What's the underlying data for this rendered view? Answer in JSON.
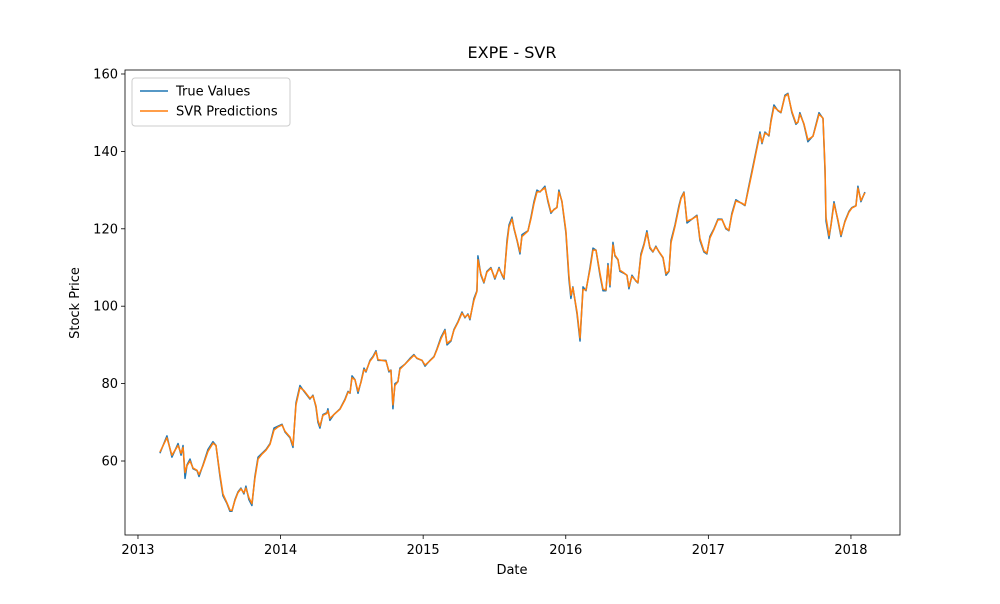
{
  "chart_data": {
    "type": "line",
    "title": "EXPE - SVR",
    "xlabel": "Date",
    "ylabel": "Stock Price",
    "xlim": [
      2012.909,
      2018.344
    ],
    "ylim": [
      40.88,
      161.03
    ],
    "xticks": [
      2013,
      2014,
      2015,
      2016,
      2017,
      2018
    ],
    "yticks": [
      60,
      80,
      100,
      120,
      140,
      160
    ],
    "legend": "upper left",
    "grid": false,
    "x": [
      2013.154,
      2013.203,
      2013.238,
      2013.281,
      2013.302,
      2013.316,
      2013.33,
      2013.344,
      2013.365,
      2013.386,
      2013.414,
      2013.428,
      2013.456,
      2013.491,
      2013.526,
      2013.547,
      2013.575,
      2013.596,
      2013.624,
      2013.645,
      2013.659,
      2013.68,
      2013.701,
      2013.722,
      2013.743,
      2013.757,
      2013.778,
      2013.799,
      2013.82,
      2013.842,
      2013.87,
      2013.898,
      2013.926,
      2013.954,
      2013.982,
      2014.01,
      2014.031,
      2014.066,
      2014.087,
      2014.108,
      2014.136,
      2014.164,
      2014.185,
      2014.206,
      2014.227,
      2014.248,
      2014.262,
      2014.276,
      2014.297,
      2014.325,
      2014.332,
      2014.346,
      2014.374,
      2014.417,
      2014.452,
      2014.473,
      2014.487,
      2014.501,
      2014.522,
      2014.543,
      2014.564,
      2014.585,
      2014.599,
      2014.627,
      2014.648,
      2014.669,
      2014.683,
      2014.711,
      2014.739,
      2014.76,
      2014.774,
      2014.788,
      2014.802,
      2014.823,
      2014.837,
      2014.872,
      2014.907,
      2014.935,
      2014.956,
      2014.992,
      2015.013,
      2015.048,
      2015.076,
      2015.097,
      2015.125,
      2015.153,
      2015.167,
      2015.195,
      2015.216,
      2015.244,
      2015.272,
      2015.293,
      2015.314,
      2015.328,
      2015.356,
      2015.377,
      2015.384,
      2015.405,
      2015.426,
      2015.447,
      2015.475,
      2015.503,
      2015.532,
      2015.553,
      2015.567,
      2015.588,
      2015.602,
      2015.623,
      2015.637,
      2015.658,
      2015.679,
      2015.693,
      2015.735,
      2015.756,
      2015.777,
      2015.798,
      2015.819,
      2015.854,
      2015.875,
      2015.896,
      2015.917,
      2015.938,
      2015.952,
      2015.973,
      2016.001,
      2016.022,
      2016.036,
      2016.05,
      2016.079,
      2016.1,
      2016.121,
      2016.142,
      2016.17,
      2016.191,
      2016.212,
      2016.24,
      2016.261,
      2016.282,
      2016.296,
      2016.31,
      2016.331,
      2016.345,
      2016.366,
      2016.38,
      2016.408,
      2016.429,
      2016.443,
      2016.464,
      2016.492,
      2016.506,
      2016.527,
      2016.548,
      2016.569,
      2016.59,
      2016.611,
      2016.632,
      2016.654,
      2016.682,
      2016.703,
      2016.724,
      2016.738,
      2016.766,
      2016.794,
      2016.808,
      2016.829,
      2016.85,
      2016.885,
      2016.92,
      2016.941,
      2016.969,
      2016.99,
      2017.011,
      2017.039,
      2017.067,
      2017.095,
      2017.123,
      2017.144,
      2017.165,
      2017.193,
      2017.236,
      2017.257,
      2017.278,
      2017.306,
      2017.334,
      2017.362,
      2017.376,
      2017.397,
      2017.425,
      2017.439,
      2017.46,
      2017.488,
      2017.509,
      2017.537,
      2017.558,
      2017.586,
      2017.614,
      2017.628,
      2017.642,
      2017.67,
      2017.698,
      2017.734,
      2017.755,
      2017.776,
      2017.804,
      2017.818,
      2017.825,
      2017.846,
      2017.86,
      2017.881,
      2017.909,
      2017.93,
      2017.958,
      2017.986,
      2018.007,
      2018.035,
      2018.049,
      2018.07,
      2018.098
    ],
    "series": [
      {
        "name": "True Values",
        "color": "#1f77b4",
        "values": [
          62,
          66.5,
          61,
          64.5,
          61.5,
          64,
          55.5,
          59,
          60.5,
          58,
          57.5,
          56,
          59,
          63,
          65,
          64,
          56,
          51,
          49,
          47,
          47,
          50,
          52,
          53,
          51.5,
          53.5,
          50,
          48.5,
          56,
          61,
          62,
          63,
          64.5,
          68.5,
          69,
          69.5,
          67.5,
          66,
          63.5,
          75,
          79.5,
          78,
          77,
          76,
          77,
          74,
          70,
          68.5,
          72,
          72.5,
          73.5,
          70.5,
          72,
          73.5,
          76,
          78,
          77.5,
          82,
          81,
          77.5,
          80.5,
          84,
          83,
          86,
          87,
          88.5,
          86,
          86,
          86,
          83,
          83.5,
          73.5,
          80,
          80.5,
          84,
          85,
          86.5,
          87.5,
          86.5,
          86,
          84.5,
          86,
          87,
          89,
          92,
          94,
          90,
          91,
          94,
          96,
          98.5,
          97,
          98,
          96.5,
          102,
          104,
          113,
          108,
          106,
          109,
          110,
          107,
          110,
          108,
          107,
          117,
          121,
          123,
          120,
          117,
          113.5,
          118.5,
          119.5,
          123,
          127,
          130,
          129.5,
          131,
          127,
          124,
          125,
          125.5,
          130,
          127,
          119,
          107,
          102,
          105,
          98,
          91,
          105,
          104,
          110,
          115,
          114.5,
          108,
          104,
          104,
          111,
          105,
          116.5,
          113,
          112,
          109,
          108.5,
          108,
          104.5,
          108,
          106.5,
          106,
          113.5,
          116,
          119.5,
          115,
          114,
          115.5,
          114,
          112.5,
          108,
          109,
          117,
          121,
          126,
          128,
          129.5,
          121.5,
          122.5,
          123.5,
          117,
          114,
          113.5,
          118,
          120,
          122.5,
          122.5,
          120,
          119.5,
          124,
          127.5,
          126.5,
          126,
          130,
          135,
          140,
          145,
          142,
          145,
          144,
          148,
          152,
          150.5,
          150,
          154.5,
          155,
          150,
          147,
          147.5,
          150,
          147,
          142.5,
          144,
          147,
          150,
          148.5,
          135,
          122,
          117.5,
          121,
          127,
          122,
          118,
          122,
          124.5,
          125.5,
          126,
          131,
          127,
          129.5
        ]
      },
      {
        "name": "SVR Predictions",
        "color": "#ff7f0e",
        "values": [
          62.3,
          66,
          61.5,
          64,
          62,
          63.5,
          57,
          58.8,
          60,
          58.2,
          57.6,
          56.5,
          58.8,
          62.5,
          64.6,
          64,
          56.5,
          51.5,
          49.2,
          47.3,
          47.2,
          49.8,
          51.8,
          52.8,
          51.8,
          53,
          50.5,
          49,
          55.5,
          60.5,
          61.8,
          62.8,
          64.3,
          68,
          68.8,
          69.3,
          67.7,
          66.2,
          64,
          74.5,
          79,
          78.2,
          77.2,
          76.2,
          76.8,
          74.3,
          70.5,
          69,
          71.8,
          72.3,
          73,
          71,
          72,
          73.4,
          75.8,
          77.8,
          77.6,
          81.5,
          81,
          78,
          80.3,
          83.6,
          83.2,
          85.8,
          86.8,
          88.2,
          86.2,
          86,
          85.8,
          83.3,
          83.4,
          74.5,
          79.5,
          80.5,
          83.7,
          85,
          86.3,
          87.3,
          86.6,
          86,
          84.8,
          85.9,
          86.9,
          88.8,
          91.6,
          93.7,
          90.4,
          91.2,
          93.8,
          95.8,
          98.2,
          97.2,
          97.8,
          96.8,
          101.5,
          103.8,
          112,
          108.3,
          106.2,
          108.8,
          109.8,
          107.3,
          109.7,
          108.2,
          107.3,
          116.2,
          120.5,
          122.5,
          120.2,
          117.2,
          114,
          118,
          119.4,
          122.6,
          126.5,
          129.5,
          129.6,
          130.6,
          127.4,
          124.3,
          124.9,
          125.5,
          129.5,
          127.2,
          119.5,
          108,
          102.8,
          104.8,
          98.5,
          91.8,
          104.3,
          104.2,
          109.5,
          114.5,
          114.5,
          108.5,
          104.4,
          104.2,
          110.5,
          105.5,
          115.8,
          113.2,
          112.1,
          109.3,
          108.6,
          108,
          105,
          107.7,
          106.6,
          106.1,
          113,
          115.7,
          119,
          115.3,
          114.1,
          115.3,
          114.1,
          112.6,
          108.4,
          109.1,
          116.4,
          120.6,
          125.5,
          127.8,
          129.3,
          122,
          122.5,
          123.3,
          117.5,
          114.3,
          113.7,
          117.6,
          119.8,
          122.3,
          122.4,
          120.2,
          119.6,
          123.6,
          127.2,
          126.6,
          126.1,
          129.6,
          134.5,
          139.6,
          144.5,
          142.3,
          144.7,
          144.2,
          147.6,
          151.5,
          150.6,
          150.1,
          154.2,
          154.8,
          150.3,
          147.3,
          147.5,
          149.6,
          147.2,
          143,
          143.9,
          146.7,
          149.6,
          148.6,
          136,
          123,
          118.2,
          120.8,
          126.5,
          122.3,
          118.4,
          121.8,
          124.3,
          125.4,
          125.9,
          130.5,
          127.3,
          129.3
        ]
      }
    ]
  }
}
